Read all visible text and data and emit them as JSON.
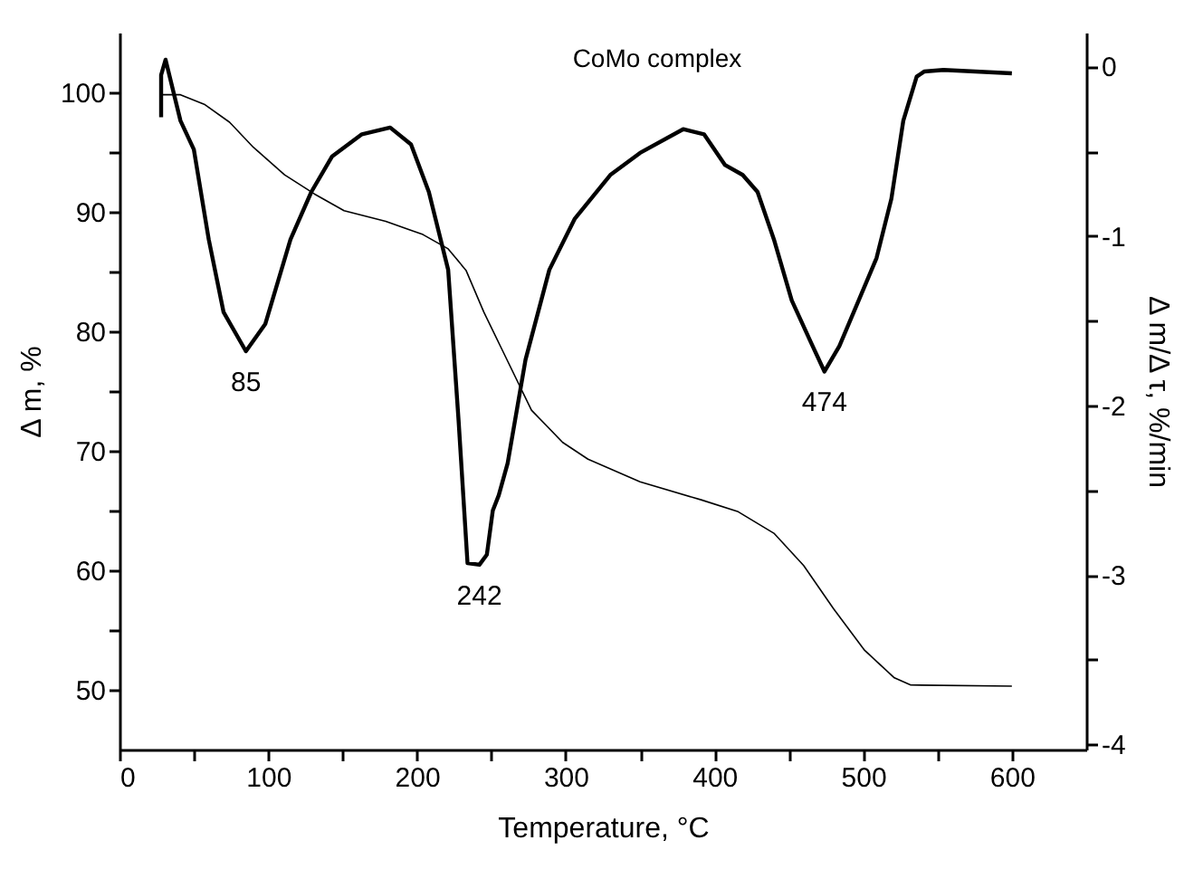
{
  "chart_data": {
    "type": "line",
    "title": "CoMo complex",
    "xlabel": "Temperature, °C",
    "ylabel": "Δ m, %",
    "y2label": "Δ m/Δ τ, %/min",
    "xlim": [
      0,
      650
    ],
    "xticks": [
      0,
      {
        "value": 50,
        "label": null
      },
      100,
      {
        "value": 150,
        "label": null
      },
      200,
      {
        "value": 250,
        "label": null
      },
      300,
      {
        "value": 350,
        "label": null
      },
      400,
      {
        "value": 450,
        "label": null
      },
      500,
      {
        "value": 550,
        "label": null
      },
      600
    ],
    "ylim": [
      45,
      105
    ],
    "yticks": [
      50,
      {
        "value": 55,
        "label": null
      },
      60,
      {
        "value": 65,
        "label": null
      },
      70,
      {
        "value": 75,
        "label": null
      },
      80,
      {
        "value": 85,
        "label": null
      },
      90,
      {
        "value": 95,
        "label": null
      },
      100
    ],
    "y2lim": [
      -4.03,
      0.2
    ],
    "y2ticks": [
      -4,
      {
        "value": -3.5,
        "label": null
      },
      -3,
      {
        "value": -2.5,
        "label": null
      },
      -2,
      {
        "value": -1.5,
        "label": null
      },
      -1,
      {
        "value": -0.5,
        "label": null
      },
      0
    ],
    "grid": false,
    "marker": "none",
    "line_style": "solid",
    "series": [
      {
        "axis": "y",
        "color": "#000000",
        "x": [
          27,
          41,
          57,
          74,
          90,
          111,
          131,
          151,
          179,
          204,
          221,
          233,
          245,
          261,
          277,
          298,
          315,
          350,
          391,
          416,
          440,
          460,
          480,
          501,
          521,
          532,
          600
        ],
        "values": [
          99.8,
          99.8,
          99.0,
          97.5,
          95.4,
          93.1,
          91.5,
          90.1,
          89.2,
          88.1,
          86.9,
          85.1,
          81.6,
          77.5,
          73.4,
          70.7,
          69.3,
          67.4,
          65.9,
          64.9,
          63.1,
          60.4,
          56.8,
          53.3,
          51.0,
          50.4,
          50.3
        ]
      },
      {
        "axis": "y2",
        "color": "#000000",
        "x": [
          28,
          28,
          31,
          41,
          50,
          60,
          70,
          85,
          98,
          115,
          129,
          143,
          163,
          182,
          196,
          208,
          221,
          228,
          234,
          242,
          247,
          251,
          255,
          261,
          273,
          289,
          306,
          330,
          350,
          379,
          393,
          407,
          419,
          429,
          440,
          452,
          465,
          474,
          484,
          497,
          509,
          519,
          527,
          536,
          541,
          554,
          600
        ],
        "values": [
          -0.3,
          -0.05,
          0.04,
          -0.32,
          -0.49,
          -1.02,
          -1.45,
          -1.68,
          -1.52,
          -1.02,
          -0.74,
          -0.53,
          -0.4,
          -0.36,
          -0.46,
          -0.74,
          -1.2,
          -2.09,
          -2.93,
          -2.94,
          -2.88,
          -2.62,
          -2.53,
          -2.34,
          -1.73,
          -1.2,
          -0.9,
          -0.64,
          -0.51,
          -0.37,
          -0.4,
          -0.58,
          -0.64,
          -0.74,
          -1.02,
          -1.38,
          -1.63,
          -1.8,
          -1.65,
          -1.38,
          -1.13,
          -0.78,
          -0.32,
          -0.06,
          -0.03,
          -0.02,
          -0.04
        ]
      }
    ],
    "annotations": [
      "85",
      "242",
      "474"
    ]
  }
}
